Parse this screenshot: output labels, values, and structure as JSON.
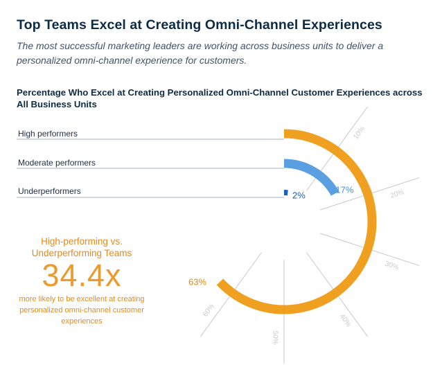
{
  "header": {
    "title": "Top Teams Excel at Creating Omni-Channel Experiences",
    "subtitle": "The most successful marketing leaders are working across business units to deliver a personalized omni-channel experience for customers."
  },
  "callout": {
    "heading": "High-performing vs. Underperforming Teams",
    "value": "34.4x",
    "note": "more likely to be excellent at creating personalized omni-channel customer experiences"
  },
  "colors": {
    "orange": "#f0a020",
    "blue": "#5aa0e0",
    "darkblue": "#1b5fc0",
    "tick": "#c9c9c9"
  },
  "chart_data": {
    "type": "radial-bar",
    "title": "Percentage Who Excel at Creating Personalized Omni-Channel Customer Experiences across All Business Units",
    "unit": "%",
    "axis_max": 100,
    "axis_ticks": [
      "10%",
      "20%",
      "30%",
      "40%",
      "50%",
      "60%"
    ],
    "categories": [
      "High performers",
      "Moderate performers",
      "Underperformers"
    ],
    "values": [
      63,
      17,
      2
    ],
    "value_labels": [
      "63%",
      "17%",
      "2%"
    ]
  }
}
